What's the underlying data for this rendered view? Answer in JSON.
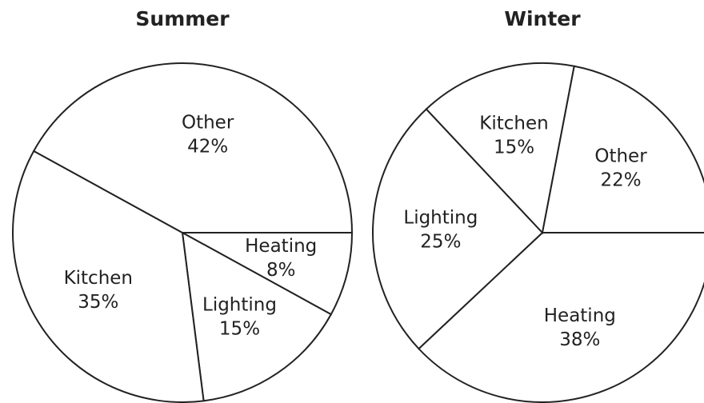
{
  "chart_data": [
    {
      "type": "pie",
      "title": "Summer",
      "categories": [
        "Heating",
        "Lighting",
        "Kitchen",
        "Other"
      ],
      "values": [
        8,
        15,
        35,
        42
      ],
      "value_labels": [
        "8%",
        "15%",
        "35%",
        "42%"
      ],
      "color": "#ffffff"
    },
    {
      "type": "pie",
      "title": "Winter",
      "categories": [
        "Heating",
        "Lighting",
        "Kitchen",
        "Other"
      ],
      "values": [
        38,
        25,
        15,
        22
      ],
      "value_labels": [
        "38%",
        "25%",
        "15%",
        "22%"
      ],
      "color": "#ffffff"
    }
  ]
}
